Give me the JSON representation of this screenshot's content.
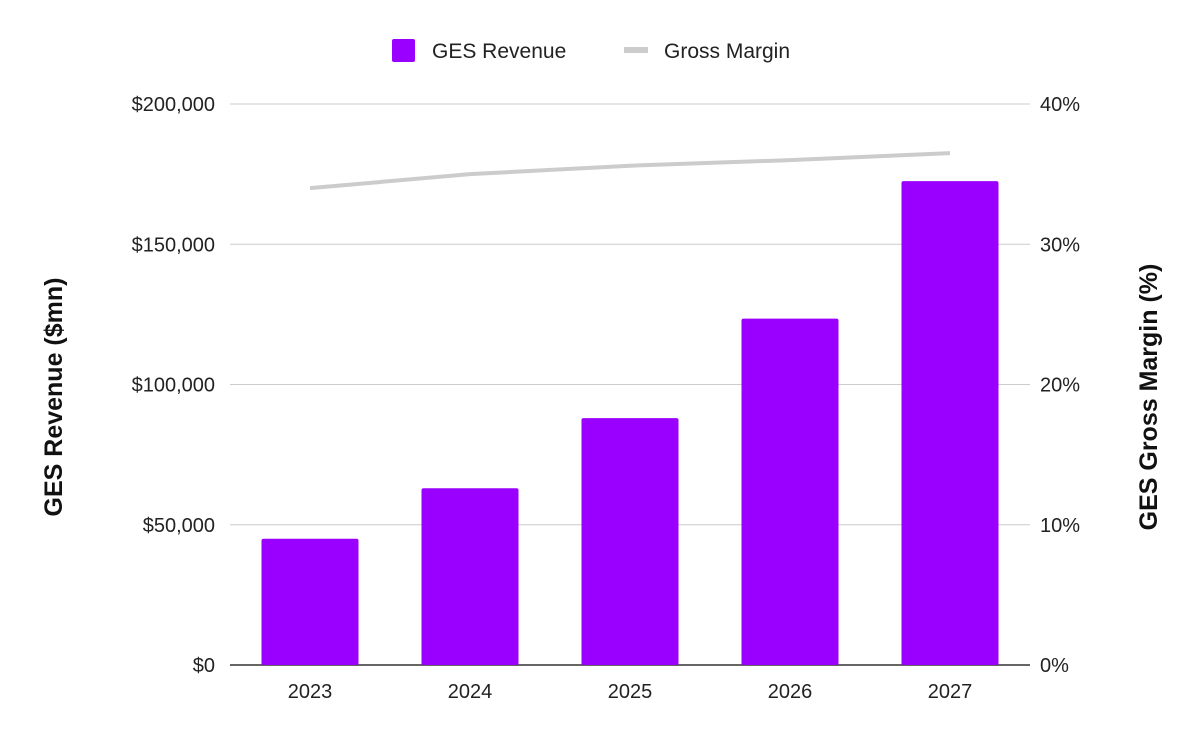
{
  "chart_data": {
    "type": "bar",
    "categories": [
      "2023",
      "2024",
      "2025",
      "2026",
      "2027"
    ],
    "series": [
      {
        "name": "GES Revenue",
        "type": "bar",
        "axis": "left",
        "color": "#9900ff",
        "values": [
          45000,
          63000,
          88000,
          123500,
          172500
        ]
      },
      {
        "name": "Gross Margin",
        "type": "line",
        "axis": "right",
        "color": "#cccccc",
        "values": [
          34,
          35,
          35.6,
          36,
          36.5
        ]
      }
    ],
    "ylabel": "GES Revenue ($mn)",
    "y2label": "GES Gross Margin (%)",
    "ylim": [
      0,
      200000
    ],
    "y2lim": [
      0,
      40
    ],
    "yticks": [
      "$0",
      "$50,000",
      "$100,000",
      "$150,000",
      "$200,000"
    ],
    "y2ticks": [
      "0%",
      "10%",
      "20%",
      "30%",
      "40%"
    ],
    "grid": true,
    "legend_position": "top-center"
  }
}
